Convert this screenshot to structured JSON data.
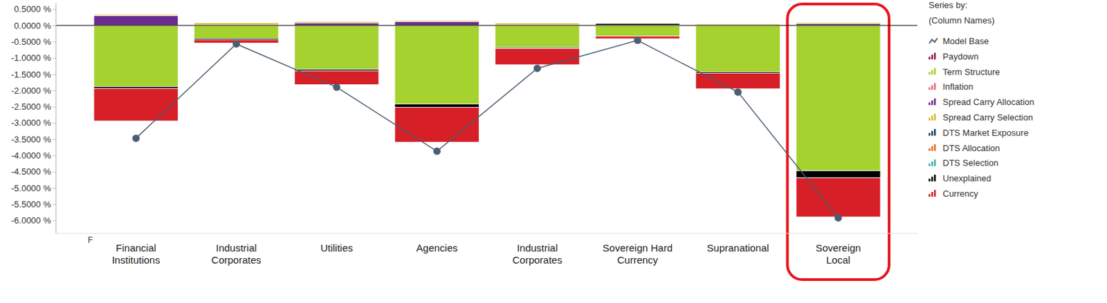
{
  "chart_data": {
    "type": "bar",
    "stacked": true,
    "grid": false,
    "legend": "right",
    "legend_title": "Series by:",
    "legend_subtitle": "(Column Names)",
    "annotation": "F",
    "categories": [
      "Financial Institutions",
      "Industrial Corporates",
      "Utilities",
      "Agencies",
      "Industrial Corporates",
      "Sovereign Hard Currency",
      "Supranational",
      "Sovereign Local"
    ],
    "ylim": [
      -6.4,
      0.7
    ],
    "yticks": [
      {
        "value": 0.5,
        "label": "0.5000 %"
      },
      {
        "value": 0,
        "label": "0.0000 %"
      },
      {
        "value": -0.5,
        "label": "-0.5000 %"
      },
      {
        "value": -1,
        "label": "-1.0000 %"
      },
      {
        "value": -1.5,
        "label": "-1.5000 %"
      },
      {
        "value": -2,
        "label": "-2.0000 %"
      },
      {
        "value": -2.5,
        "label": "-2.5000 %"
      },
      {
        "value": -3,
        "label": "-3.0000 %"
      },
      {
        "value": -3.5,
        "label": "-3.5000 %"
      },
      {
        "value": -4,
        "label": "-4.0000 %"
      },
      {
        "value": -4.5,
        "label": "-4.5000 %"
      },
      {
        "value": -5,
        "label": "-5.0000 %"
      },
      {
        "value": -5.5,
        "label": "-5.5000 %"
      },
      {
        "value": -6,
        "label": "-6.0000 %"
      }
    ],
    "series": [
      {
        "name": "Model Base",
        "type": "line",
        "marker": "circle",
        "color": "#4d5e72",
        "values": [
          -3.47,
          -0.57,
          -1.9,
          -3.87,
          -1.32,
          -0.46,
          -2.05,
          -5.92
        ]
      },
      {
        "name": "Paydown",
        "color": "#8e1f4e",
        "values": [
          0,
          0,
          0,
          0,
          0,
          0,
          0,
          0
        ]
      },
      {
        "name": "Term Structure",
        "color": "#a5d22f",
        "values": [
          -1.88,
          -0.4,
          -1.35,
          -2.42,
          -0.68,
          -0.33,
          -1.43,
          -4.47
        ]
      },
      {
        "name": "Inflation",
        "color": "#e0707a",
        "values": [
          0,
          0,
          0,
          0,
          0,
          0,
          0,
          0
        ]
      },
      {
        "name": "Spread Carry Allocation",
        "color": "#6b2c91",
        "values": [
          0.3,
          0.02,
          0.08,
          0.12,
          0.02,
          0,
          0.02,
          0.06
        ]
      },
      {
        "name": "Spread Carry Selection",
        "color": "#d9b92a",
        "values": [
          0.03,
          0.06,
          0.04,
          0.03,
          0.05,
          0.01,
          0.03,
          0.03
        ]
      },
      {
        "name": "DTS Market Exposure",
        "color": "#1f3f66",
        "values": [
          0,
          0,
          0,
          0,
          0,
          0,
          0,
          0
        ]
      },
      {
        "name": "DTS Allocation",
        "color": "#e0701f",
        "values": [
          0,
          0,
          0,
          0,
          0,
          0,
          0,
          0
        ]
      },
      {
        "name": "DTS Selection",
        "color": "#3fb3a8",
        "values": [
          0,
          0,
          0,
          0,
          0,
          0,
          0,
          0
        ]
      },
      {
        "name": "Unexplained",
        "color": "#000000",
        "values": [
          -0.06,
          -0.04,
          -0.05,
          -0.1,
          -0.03,
          0.05,
          -0.04,
          -0.22
        ]
      },
      {
        "name": "Currency",
        "color": "#d61f26",
        "values": [
          -1.0,
          -0.1,
          -0.42,
          -1.07,
          -0.5,
          -0.08,
          -0.48,
          -1.2
        ]
      }
    ]
  }
}
